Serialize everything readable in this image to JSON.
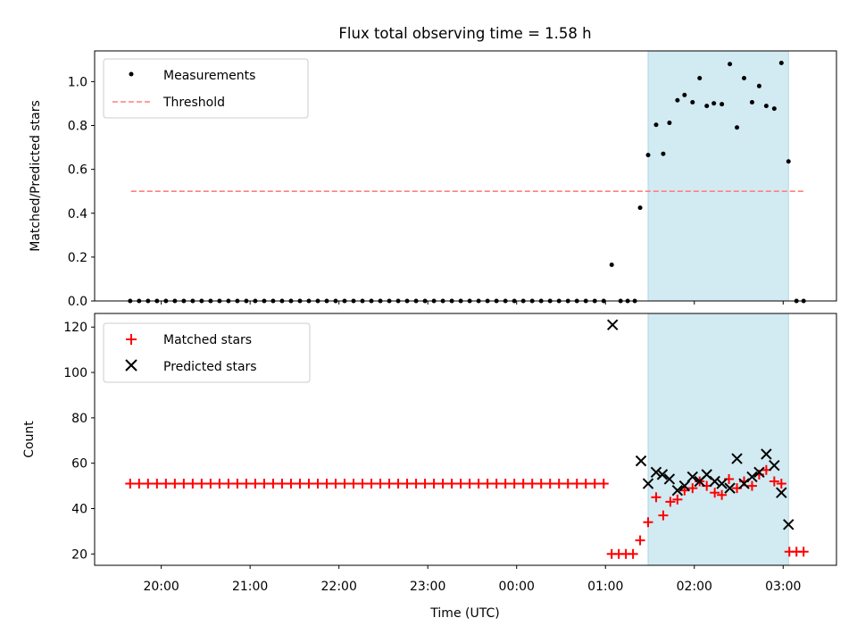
{
  "chart_data": {
    "type": "scatter",
    "title": "Flux total observing time = 1.58 h",
    "xlabel": "Time (UTC)",
    "x_unit": "hours since 00:00 UTC (negative = previous day)",
    "xlim": [
      -4.75,
      3.6
    ],
    "x_ticks": [
      {
        "value": -4,
        "label": "20:00"
      },
      {
        "value": -3,
        "label": "21:00"
      },
      {
        "value": -2,
        "label": "22:00"
      },
      {
        "value": -1,
        "label": "23:00"
      },
      {
        "value": 0,
        "label": "00:00"
      },
      {
        "value": 1,
        "label": "01:00"
      },
      {
        "value": 2,
        "label": "02:00"
      },
      {
        "value": 3,
        "label": "03:00"
      }
    ],
    "shaded_interval": {
      "start": 1.48,
      "end": 3.06,
      "color": "#add8e6"
    },
    "top_panel": {
      "ylabel": "Matched/Predicted stars",
      "ylim": [
        0,
        1.14
      ],
      "y_ticks": [
        {
          "value": 0,
          "label": "0.0"
        },
        {
          "value": 0.2,
          "label": "0.2"
        },
        {
          "value": 0.4,
          "label": "0.4"
        },
        {
          "value": 0.6,
          "label": "0.6"
        },
        {
          "value": 0.8,
          "label": "0.8"
        },
        {
          "value": 1.0,
          "label": "1.0"
        }
      ],
      "legend": [
        "Measurements",
        "Threshold"
      ],
      "legend_position": "upper-left",
      "threshold": {
        "value": 0.5,
        "x_start": -4.34,
        "x_end": 3.25,
        "color": "#ff7f7f"
      },
      "zero_series": {
        "x_start": -4.35,
        "x_end": 0.98,
        "count": 54,
        "value": 0.0
      },
      "series": [
        {
          "name": "Measurements",
          "color": "#000000",
          "points": [
            [
              1.07,
              0.165
            ],
            [
              1.17,
              0.0
            ],
            [
              1.25,
              0.0
            ],
            [
              1.33,
              0.0
            ],
            [
              1.39,
              0.425
            ],
            [
              1.48,
              0.665
            ],
            [
              1.57,
              0.803
            ],
            [
              1.65,
              0.671
            ],
            [
              1.72,
              0.812
            ],
            [
              1.81,
              0.915
            ],
            [
              1.89,
              0.939
            ],
            [
              1.98,
              0.906
            ],
            [
              2.06,
              1.016
            ],
            [
              2.14,
              0.889
            ],
            [
              2.22,
              0.901
            ],
            [
              2.31,
              0.897
            ],
            [
              2.4,
              1.08
            ],
            [
              2.48,
              0.791
            ],
            [
              2.56,
              1.016
            ],
            [
              2.65,
              0.906
            ],
            [
              2.73,
              0.98
            ],
            [
              2.81,
              0.889
            ],
            [
              2.9,
              0.877
            ],
            [
              2.98,
              1.085
            ],
            [
              3.06,
              0.636
            ],
            [
              3.15,
              0.0
            ],
            [
              3.23,
              0.0
            ]
          ]
        }
      ]
    },
    "bottom_panel": {
      "ylabel": "Count",
      "ylim": [
        15,
        126
      ],
      "y_ticks": [
        {
          "value": 20,
          "label": "20"
        },
        {
          "value": 40,
          "label": "40"
        },
        {
          "value": 60,
          "label": "60"
        },
        {
          "value": 80,
          "label": "80"
        },
        {
          "value": 100,
          "label": "100"
        },
        {
          "value": 120,
          "label": "120"
        }
      ],
      "legend": [
        "Matched stars",
        "Predicted stars"
      ],
      "legend_position": "upper-left",
      "matched_flat": {
        "x_start": -4.35,
        "x_end": 0.98,
        "count": 54,
        "value": 51
      },
      "series": [
        {
          "name": "Matched stars",
          "color": "#ff0000",
          "marker": "plus",
          "points": [
            [
              1.07,
              20
            ],
            [
              1.15,
              20
            ],
            [
              1.23,
              20
            ],
            [
              1.31,
              20
            ],
            [
              1.39,
              26
            ],
            [
              1.48,
              34
            ],
            [
              1.57,
              45
            ],
            [
              1.65,
              37
            ],
            [
              1.73,
              43
            ],
            [
              1.81,
              44
            ],
            [
              1.89,
              48
            ],
            [
              1.98,
              49
            ],
            [
              2.06,
              52
            ],
            [
              2.14,
              50
            ],
            [
              2.23,
              47
            ],
            [
              2.31,
              46
            ],
            [
              2.39,
              53
            ],
            [
              2.48,
              49
            ],
            [
              2.56,
              52
            ],
            [
              2.65,
              50
            ],
            [
              2.73,
              55
            ],
            [
              2.81,
              57
            ],
            [
              2.9,
              52
            ],
            [
              2.98,
              51
            ],
            [
              3.07,
              21
            ],
            [
              3.15,
              21
            ],
            [
              3.23,
              21
            ]
          ]
        },
        {
          "name": "Predicted stars",
          "color": "#000000",
          "marker": "x",
          "points": [
            [
              1.08,
              121
            ],
            [
              1.4,
              61
            ],
            [
              1.48,
              51
            ],
            [
              1.57,
              56
            ],
            [
              1.64,
              55
            ],
            [
              1.72,
              53
            ],
            [
              1.81,
              48
            ],
            [
              1.89,
              50
            ],
            [
              1.98,
              54
            ],
            [
              2.06,
              52
            ],
            [
              2.14,
              55
            ],
            [
              2.23,
              52
            ],
            [
              2.31,
              51
            ],
            [
              2.4,
              49
            ],
            [
              2.48,
              62
            ],
            [
              2.56,
              51
            ],
            [
              2.65,
              54
            ],
            [
              2.73,
              56
            ],
            [
              2.81,
              64
            ],
            [
              2.9,
              59
            ],
            [
              2.98,
              47
            ],
            [
              3.06,
              33
            ]
          ]
        }
      ]
    }
  }
}
